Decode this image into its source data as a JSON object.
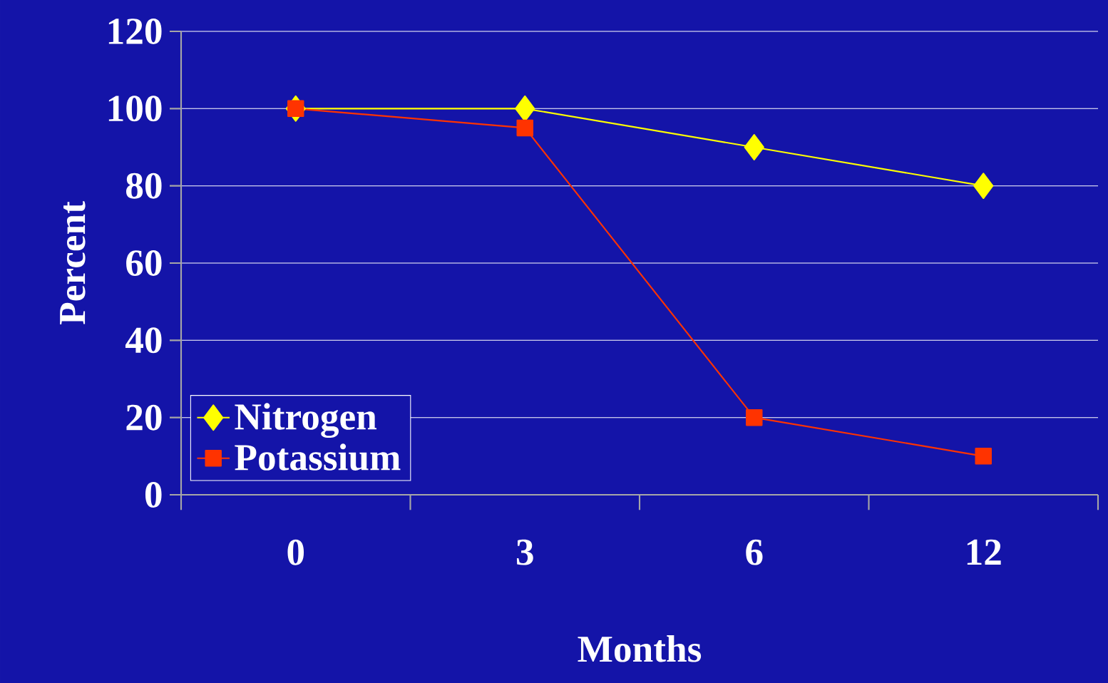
{
  "chart_data": {
    "type": "line",
    "xlabel": "Months",
    "ylabel": "Percent",
    "categories": [
      "0",
      "3",
      "6",
      "12"
    ],
    "series": [
      {
        "name": "Nitrogen",
        "color": "#ffff00",
        "marker": "diamond",
        "values": [
          100,
          100,
          90,
          80
        ]
      },
      {
        "name": "Potassium",
        "color": "#ff3300",
        "marker": "square",
        "values": [
          100,
          95,
          20,
          10
        ]
      }
    ],
    "ylim": [
      0,
      120
    ],
    "yticks": [
      0,
      20,
      40,
      60,
      80,
      100,
      120
    ],
    "grid": "y",
    "legend": "bottom left",
    "line_style": "solid"
  }
}
